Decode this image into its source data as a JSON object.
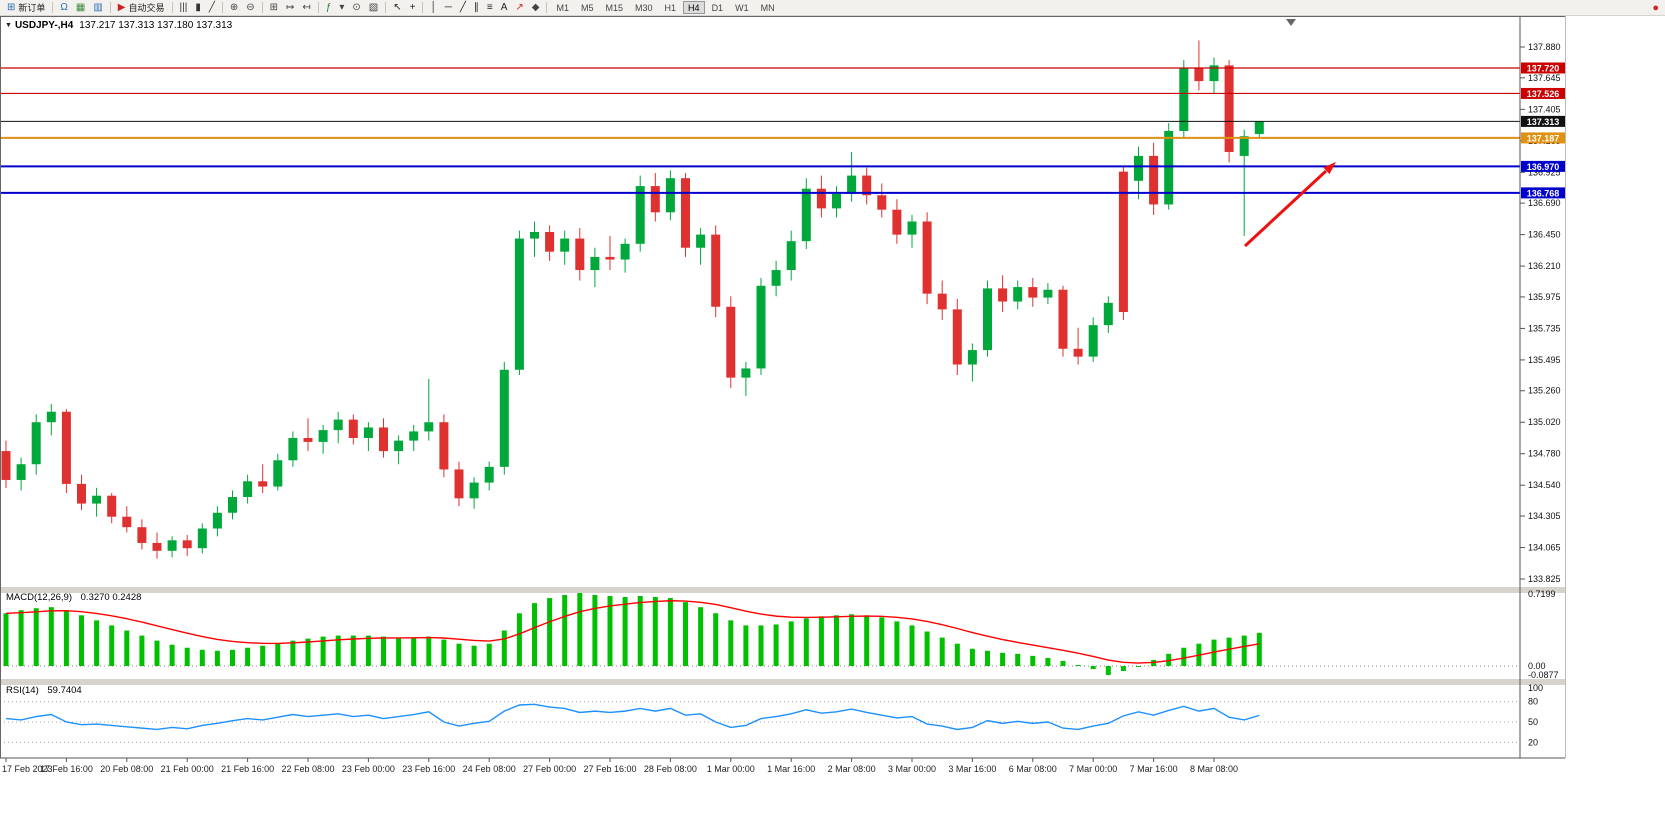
{
  "toolbar": {
    "items": [
      {
        "kind": "button",
        "name": "new-order-button",
        "glyph": "⊞",
        "color": "#2a6db5",
        "label": "新订单"
      },
      {
        "kind": "sep"
      },
      {
        "kind": "icon",
        "name": "headset-icon",
        "glyph": "Ω",
        "color": "#2a6db5"
      },
      {
        "kind": "icon",
        "name": "chart-window-icon",
        "glyph": "▦",
        "color": "#3f8a3f"
      },
      {
        "kind": "icon",
        "name": "market-watch-icon",
        "glyph": "▥",
        "color": "#2a6db5"
      },
      {
        "kind": "sep"
      },
      {
        "kind": "button",
        "name": "autotrade-button",
        "glyph": "▶",
        "color": "#cc2222",
        "label": "自动交易"
      },
      {
        "kind": "sep"
      },
      {
        "kind": "icon",
        "name": "ohlc-bars-icon",
        "glyph": "|||",
        "color": "#333333"
      },
      {
        "kind": "icon",
        "name": "candlestick-chart-icon",
        "glyph": "▮",
        "color": "#333333"
      },
      {
        "kind": "icon",
        "name": "line-chart-icon",
        "glyph": "╱",
        "color": "#333333"
      },
      {
        "kind": "sep"
      },
      {
        "kind": "icon",
        "name": "zoom-in-icon",
        "glyph": "⊕",
        "color": "#444444"
      },
      {
        "kind": "icon",
        "name": "zoom-out-icon",
        "glyph": "⊖",
        "color": "#444444"
      },
      {
        "kind": "sep"
      },
      {
        "kind": "icon",
        "name": "tile-windows-icon",
        "glyph": "⊞",
        "color": "#444444"
      },
      {
        "kind": "icon",
        "name": "auto-scroll-icon",
        "glyph": "↦",
        "color": "#444444"
      },
      {
        "kind": "icon",
        "name": "chart-shift-icon",
        "glyph": "↤",
        "color": "#444444"
      },
      {
        "kind": "sep"
      },
      {
        "kind": "icon",
        "name": "indicators-icon",
        "glyph": "ƒ",
        "color": "#2f7a2f"
      },
      {
        "kind": "icon",
        "name": "indicators-dropdown-icon",
        "glyph": "▾",
        "color": "#444444"
      },
      {
        "kind": "icon",
        "name": "periods-icon",
        "glyph": "⊙",
        "color": "#444444"
      },
      {
        "kind": "icon",
        "name": "templates-icon",
        "glyph": "▧",
        "color": "#444444"
      },
      {
        "kind": "sep"
      },
      {
        "kind": "icon",
        "name": "cursor-icon",
        "glyph": "↖",
        "color": "#222222"
      },
      {
        "kind": "icon",
        "name": "crosshair-icon",
        "glyph": "+",
        "color": "#222222"
      },
      {
        "kind": "sep"
      },
      {
        "kind": "icon",
        "name": "vertical-line-icon",
        "glyph": "│",
        "color": "#222222"
      },
      {
        "kind": "icon",
        "name": "horizontal-line-icon",
        "glyph": "─",
        "color": "#222222"
      },
      {
        "kind": "icon",
        "name": "trendline-icon",
        "glyph": "╱",
        "color": "#222222"
      },
      {
        "kind": "icon",
        "name": "channel-icon",
        "glyph": "∥",
        "color": "#222222"
      },
      {
        "kind": "icon",
        "name": "fibonacci-icon",
        "glyph": "≡",
        "color": "#222222"
      },
      {
        "kind": "icon",
        "name": "text-label-icon",
        "glyph": "A",
        "color": "#222222"
      },
      {
        "kind": "icon",
        "name": "arrows-tool-icon",
        "glyph": "↗",
        "color": "#cc2222"
      },
      {
        "kind": "icon",
        "name": "shapes-icon",
        "glyph": "◆",
        "color": "#444444"
      },
      {
        "kind": "sep"
      }
    ],
    "timeframes": [
      "M1",
      "M5",
      "M15",
      "M30",
      "H1",
      "H4",
      "D1",
      "W1",
      "MN"
    ],
    "active_timeframe": "H4",
    "notification_glyph": "●"
  },
  "chart": {
    "title_symbol": "USDJPY-,H4",
    "title_ohlc": "137.217 137.313 137.180 137.313",
    "colors": {
      "bull": "#00A83C",
      "bear": "#E03131",
      "macd_bar": "#00C000",
      "macd_signal": "#FF0000",
      "rsi_line": "#1E90FF",
      "arrow": "#EE1111",
      "separator": "#d6d3cc",
      "frame": "#666666"
    },
    "price_lines": [
      {
        "name": "resistance-line-1",
        "label": "137.720",
        "value": 137.72,
        "color": "#CC0000",
        "width": 1.2
      },
      {
        "name": "resistance-line-2",
        "label": "137.526",
        "value": 137.526,
        "color": "#CC0000",
        "width": 1.2
      },
      {
        "name": "current-price-line",
        "label": "137.313",
        "value": 137.313,
        "color": "#111111",
        "width": 1
      },
      {
        "name": "pivot-line",
        "label": "137.187",
        "value": 137.187,
        "color": "#E09112",
        "width": 2
      },
      {
        "name": "support-line-1",
        "label": "136.970",
        "value": 136.97,
        "color": "#0000CD",
        "width": 2
      },
      {
        "name": "support-line-2",
        "label": "136.768",
        "value": 136.768,
        "color": "#0000CD",
        "width": 2
      }
    ]
  },
  "panels": {
    "macd_title": "MACD(12,26,9)",
    "macd_values": "0.3270 0.2428",
    "rsi_title": "RSI(14)",
    "rsi_value": "59.7404"
  },
  "chart_data": {
    "type": "candlestick",
    "symbol": "USDJPY",
    "period": "H4",
    "current": {
      "open": 137.217,
      "high": 137.313,
      "low": 137.18,
      "close": 137.313
    },
    "price_axis": {
      "labels": [
        "137.880",
        "137.645",
        "137.405",
        "137.165",
        "136.925",
        "136.690",
        "136.450",
        "136.210",
        "135.975",
        "135.735",
        "135.495",
        "135.260",
        "135.020",
        "134.780",
        "134.540",
        "134.305",
        "134.065",
        "133.825"
      ],
      "min": 133.825,
      "max": 137.88
    },
    "time_labels": [
      "17 Feb 2023",
      "17 Feb 16:00",
      "20 Feb 08:00",
      "21 Feb 00:00",
      "21 Feb 16:00",
      "22 Feb 08:00",
      "23 Feb 00:00",
      "23 Feb 16:00",
      "24 Feb 08:00",
      "27 Feb 00:00",
      "27 Feb 16:00",
      "28 Feb 08:00",
      "1 Mar 00:00",
      "1 Mar 16:00",
      "2 Mar 08:00",
      "3 Mar 00:00",
      "3 Mar 16:00",
      "6 Mar 08:00",
      "7 Mar 00:00",
      "7 Mar 16:00",
      "8 Mar 08:00"
    ],
    "label_every": 4,
    "candles": [
      [
        134.8,
        134.88,
        134.52,
        134.58
      ],
      [
        134.58,
        134.75,
        134.5,
        134.7
      ],
      [
        134.7,
        135.08,
        134.62,
        135.02
      ],
      [
        135.02,
        135.16,
        134.92,
        135.1
      ],
      [
        135.1,
        135.12,
        134.48,
        134.55
      ],
      [
        134.55,
        134.62,
        134.35,
        134.4
      ],
      [
        134.4,
        134.52,
        134.3,
        134.46
      ],
      [
        134.46,
        134.48,
        134.25,
        134.3
      ],
      [
        134.3,
        134.38,
        134.18,
        134.22
      ],
      [
        134.22,
        134.28,
        134.05,
        134.1
      ],
      [
        134.1,
        134.18,
        133.98,
        134.04
      ],
      [
        134.04,
        134.15,
        133.99,
        134.12
      ],
      [
        134.12,
        134.16,
        134.0,
        134.06
      ],
      [
        134.06,
        134.25,
        134.02,
        134.21
      ],
      [
        134.21,
        134.38,
        134.15,
        134.33
      ],
      [
        134.33,
        134.5,
        134.28,
        134.45
      ],
      [
        134.45,
        134.62,
        134.4,
        134.57
      ],
      [
        134.57,
        134.7,
        134.48,
        134.53
      ],
      [
        134.53,
        134.78,
        134.5,
        134.73
      ],
      [
        134.73,
        134.95,
        134.68,
        134.9
      ],
      [
        134.9,
        135.05,
        134.8,
        134.87
      ],
      [
        134.87,
        135.0,
        134.78,
        134.96
      ],
      [
        134.96,
        135.1,
        134.86,
        135.04
      ],
      [
        135.04,
        135.08,
        134.85,
        134.9
      ],
      [
        134.9,
        135.02,
        134.8,
        134.98
      ],
      [
        134.98,
        135.05,
        134.75,
        134.8
      ],
      [
        134.8,
        134.92,
        134.7,
        134.88
      ],
      [
        134.88,
        135.0,
        134.8,
        134.95
      ],
      [
        134.95,
        135.35,
        134.88,
        135.02
      ],
      [
        135.02,
        135.08,
        134.6,
        134.66
      ],
      [
        134.66,
        134.72,
        134.38,
        134.44
      ],
      [
        134.44,
        134.6,
        134.36,
        134.56
      ],
      [
        134.56,
        134.72,
        134.5,
        134.68
      ],
      [
        134.68,
        135.48,
        134.62,
        135.42
      ],
      [
        135.42,
        136.48,
        135.38,
        136.42
      ],
      [
        136.42,
        136.55,
        136.28,
        136.47
      ],
      [
        136.47,
        136.52,
        136.25,
        136.32
      ],
      [
        136.32,
        136.48,
        136.22,
        136.42
      ],
      [
        136.42,
        136.5,
        136.1,
        136.18
      ],
      [
        136.18,
        136.35,
        136.05,
        136.28
      ],
      [
        136.28,
        136.44,
        136.18,
        136.26
      ],
      [
        136.26,
        136.42,
        136.16,
        136.38
      ],
      [
        136.38,
        136.9,
        136.32,
        136.82
      ],
      [
        136.82,
        136.92,
        136.55,
        136.62
      ],
      [
        136.62,
        136.94,
        136.56,
        136.88
      ],
      [
        136.88,
        136.92,
        136.28,
        136.35
      ],
      [
        136.35,
        136.5,
        136.22,
        136.45
      ],
      [
        136.45,
        136.52,
        135.82,
        135.9
      ],
      [
        135.9,
        135.98,
        135.28,
        135.36
      ],
      [
        135.36,
        135.48,
        135.22,
        135.43
      ],
      [
        135.43,
        136.12,
        135.38,
        136.06
      ],
      [
        136.06,
        136.25,
        135.98,
        136.18
      ],
      [
        136.18,
        136.48,
        136.1,
        136.4
      ],
      [
        136.4,
        136.88,
        136.34,
        136.8
      ],
      [
        136.8,
        136.9,
        136.58,
        136.65
      ],
      [
        136.65,
        136.82,
        136.58,
        136.76
      ],
      [
        136.76,
        137.08,
        136.7,
        136.9
      ],
      [
        136.9,
        136.96,
        136.68,
        136.75
      ],
      [
        136.75,
        136.84,
        136.58,
        136.64
      ],
      [
        136.64,
        136.72,
        136.38,
        136.45
      ],
      [
        136.45,
        136.6,
        136.35,
        136.55
      ],
      [
        136.55,
        136.62,
        135.92,
        136.0
      ],
      [
        136.0,
        136.1,
        135.8,
        135.88
      ],
      [
        135.88,
        135.96,
        135.38,
        135.46
      ],
      [
        135.46,
        135.62,
        135.33,
        135.57
      ],
      [
        135.57,
        136.1,
        135.52,
        136.04
      ],
      [
        136.04,
        136.14,
        135.86,
        135.94
      ],
      [
        135.94,
        136.1,
        135.88,
        136.05
      ],
      [
        136.05,
        136.12,
        135.9,
        135.97
      ],
      [
        135.97,
        136.08,
        135.92,
        136.03
      ],
      [
        136.03,
        136.06,
        135.52,
        135.58
      ],
      [
        135.58,
        135.74,
        135.46,
        135.52
      ],
      [
        135.52,
        135.82,
        135.48,
        135.76
      ],
      [
        135.76,
        135.98,
        135.7,
        135.93
      ],
      [
        136.93,
        136.97,
        135.8,
        135.86
      ],
      [
        136.86,
        137.12,
        136.72,
        137.05
      ],
      [
        137.05,
        137.15,
        136.6,
        136.68
      ],
      [
        136.68,
        137.3,
        136.64,
        137.24
      ],
      [
        137.24,
        137.78,
        137.18,
        137.72
      ],
      [
        137.72,
        137.93,
        137.55,
        137.62
      ],
      [
        137.62,
        137.8,
        137.52,
        137.74
      ],
      [
        137.74,
        137.78,
        137.0,
        137.08
      ],
      [
        137.05,
        137.25,
        136.44,
        137.2
      ],
      [
        137.217,
        137.313,
        137.18,
        137.313
      ]
    ],
    "macd": {
      "label": "MACD(12,26,9)",
      "current_macd": 0.327,
      "current_signal": 0.2428,
      "scale_labels": [
        "0.7199",
        "0.00",
        "-0.0877"
      ],
      "values": [
        0.52,
        0.55,
        0.57,
        0.58,
        0.55,
        0.5,
        0.45,
        0.4,
        0.35,
        0.3,
        0.25,
        0.21,
        0.18,
        0.16,
        0.15,
        0.16,
        0.18,
        0.2,
        0.22,
        0.25,
        0.27,
        0.29,
        0.3,
        0.3,
        0.3,
        0.29,
        0.28,
        0.28,
        0.29,
        0.26,
        0.22,
        0.2,
        0.22,
        0.35,
        0.52,
        0.62,
        0.67,
        0.7,
        0.72,
        0.7,
        0.69,
        0.68,
        0.69,
        0.68,
        0.67,
        0.63,
        0.58,
        0.52,
        0.45,
        0.4,
        0.4,
        0.41,
        0.44,
        0.47,
        0.49,
        0.5,
        0.51,
        0.5,
        0.48,
        0.44,
        0.4,
        0.34,
        0.28,
        0.22,
        0.17,
        0.15,
        0.13,
        0.12,
        0.1,
        0.08,
        0.05,
        0.01,
        -0.03,
        -0.088,
        -0.05,
        0.0,
        0.06,
        0.12,
        0.18,
        0.22,
        0.26,
        0.28,
        0.3,
        0.327
      ]
    },
    "rsi": {
      "label": "RSI(14)",
      "current": 59.7404,
      "levels": [
        100,
        80,
        50,
        20
      ],
      "values": [
        55,
        53,
        58,
        61,
        50,
        46,
        47,
        45,
        43,
        41,
        39,
        42,
        40,
        45,
        48,
        52,
        55,
        53,
        57,
        61,
        58,
        60,
        62,
        58,
        60,
        55,
        58,
        61,
        65,
        50,
        44,
        48,
        51,
        66,
        75,
        76,
        72,
        70,
        64,
        66,
        64,
        66,
        70,
        66,
        70,
        60,
        62,
        50,
        42,
        45,
        55,
        58,
        62,
        68,
        63,
        65,
        69,
        64,
        60,
        56,
        58,
        47,
        44,
        39,
        42,
        52,
        48,
        51,
        48,
        50,
        41,
        39,
        44,
        48,
        59,
        65,
        60,
        67,
        73,
        66,
        70,
        57,
        53,
        59.74
      ]
    }
  }
}
